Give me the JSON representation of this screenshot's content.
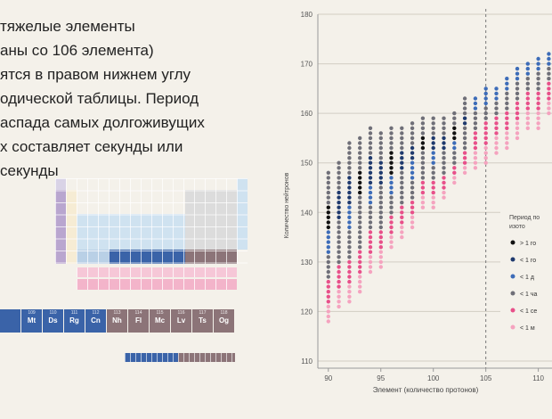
{
  "intro": {
    "lines": [
      "тяжелые элементы",
      "аны со 106 элемента)",
      "ятся в правом нижнем углу",
      "одической таблицы. Период",
      "аспада самых долгоживущих",
      "х составляет секунды или",
      "секунды"
    ]
  },
  "periodic_table": {
    "heavy_row": [
      {
        "num": "",
        "sym": "",
        "color": "#3a63a8"
      },
      {
        "num": "109",
        "sym": "Mt",
        "color": "#3a63a8"
      },
      {
        "num": "110",
        "sym": "Ds",
        "color": "#3a63a8"
      },
      {
        "num": "111",
        "sym": "Rg",
        "color": "#3a63a8"
      },
      {
        "num": "112",
        "sym": "Cn",
        "color": "#3a63a8"
      },
      {
        "num": "113",
        "sym": "Nh",
        "color": "#8c7478"
      },
      {
        "num": "114",
        "sym": "Fl",
        "color": "#8c7478"
      },
      {
        "num": "115",
        "sym": "Mc",
        "color": "#8c7478"
      },
      {
        "num": "116",
        "sym": "Lv",
        "color": "#8c7478"
      },
      {
        "num": "117",
        "sym": "Ts",
        "color": "#8c7478"
      },
      {
        "num": "118",
        "sym": "Og",
        "color": "#8c7478"
      }
    ]
  },
  "colors": {
    "lt_1y": "#111111",
    "lt_1y_dark": "#1f3a6e",
    "lt_1d": "#3d6cb8",
    "lt_1h": "#6f6f78",
    "lt_1s": "#e8508a",
    "lt_1ms": "#f5a3bf"
  },
  "chart_data": {
    "type": "scatter",
    "xlabel": "Элемент (количество протонов)",
    "ylabel": "Количество нейтронов",
    "xlim": [
      89,
      113
    ],
    "ylim": [
      110,
      180
    ],
    "xticks": [
      90,
      95,
      100,
      105,
      110
    ],
    "yticks": [
      110,
      120,
      130,
      140,
      150,
      160,
      170,
      180
    ],
    "vline": 105,
    "grid": "horizontal",
    "legend_position": "right",
    "legend_title": [
      "Период по",
      "изото"
    ],
    "legend": [
      {
        "label": "> 1 го",
        "color": "#111111"
      },
      {
        "label": "< 1 го",
        "color": "#1f3a6e"
      },
      {
        "label": "< 1 д",
        "color": "#3d6cb8"
      },
      {
        "label": "< 1 ча",
        "color": "#6f6f78"
      },
      {
        "label": "< 1 се",
        "color": "#e8508a"
      },
      {
        "label": "< 1 м",
        "color": "#f5a3bf"
      }
    ],
    "series": [
      {
        "x": 90,
        "y_ranges": [
          [
            118,
            148
          ]
        ]
      },
      {
        "x": 91,
        "y_ranges": [
          [
            121,
            150
          ]
        ]
      },
      {
        "x": 92,
        "y_ranges": [
          [
            122,
            154
          ]
        ]
      },
      {
        "x": 93,
        "y_ranges": [
          [
            124,
            155
          ]
        ]
      },
      {
        "x": 94,
        "y_ranges": [
          [
            128,
            157
          ]
        ]
      },
      {
        "x": 95,
        "y_ranges": [
          [
            129,
            156
          ]
        ]
      },
      {
        "x": 96,
        "y_ranges": [
          [
            133,
            157
          ]
        ]
      },
      {
        "x": 97,
        "y_ranges": [
          [
            135,
            157
          ]
        ]
      },
      {
        "x": 98,
        "y_ranges": [
          [
            137,
            158
          ]
        ]
      },
      {
        "x": 99,
        "y_ranges": [
          [
            141,
            159
          ]
        ]
      },
      {
        "x": 100,
        "y_ranges": [
          [
            141,
            159
          ]
        ]
      },
      {
        "x": 101,
        "y_ranges": [
          [
            143,
            159
          ]
        ]
      },
      {
        "x": 102,
        "y_ranges": [
          [
            146,
            160
          ]
        ]
      },
      {
        "x": 103,
        "y_ranges": [
          [
            148,
            163
          ]
        ]
      },
      {
        "x": 104,
        "y_ranges": [
          [
            149,
            163
          ]
        ]
      },
      {
        "x": 105,
        "y_ranges": [
          [
            150,
            165
          ]
        ]
      },
      {
        "x": 106,
        "y_ranges": [
          [
            152,
            165
          ]
        ]
      },
      {
        "x": 107,
        "y_ranges": [
          [
            153,
            167
          ]
        ]
      },
      {
        "x": 108,
        "y_ranges": [
          [
            155,
            169
          ]
        ]
      },
      {
        "x": 109,
        "y_ranges": [
          [
            157,
            170
          ]
        ]
      },
      {
        "x": 110,
        "y_ranges": [
          [
            157,
            171
          ]
        ]
      },
      {
        "x": 111,
        "y_ranges": [
          [
            160,
            172
          ]
        ]
      },
      {
        "x": 112,
        "y_ranges": [
          [
            162,
            173
          ]
        ]
      }
    ]
  }
}
